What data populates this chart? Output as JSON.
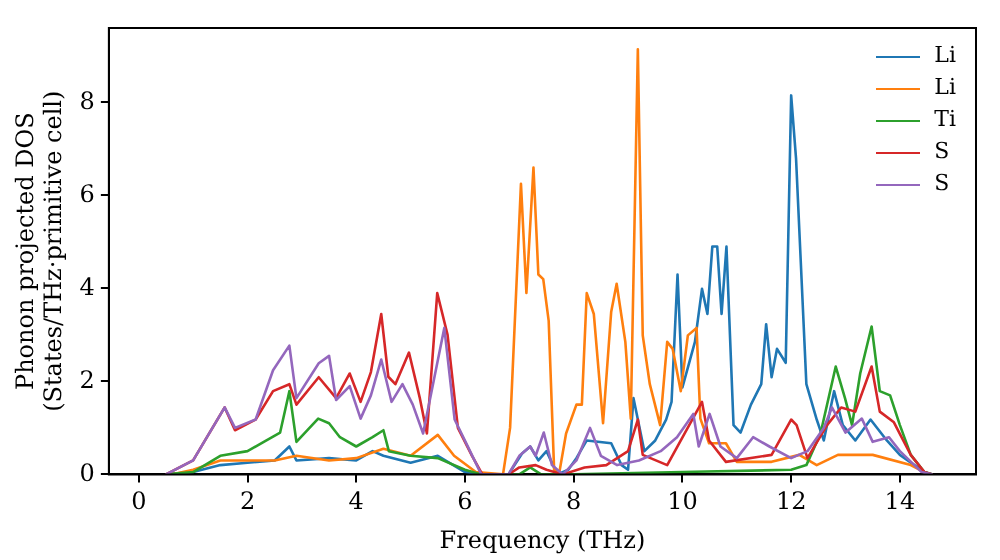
{
  "chart_data": {
    "type": "line",
    "xlabel": "Frequency (THz)",
    "ylabel": "Phonon projected DOS\n(States/THz·primitive cell)",
    "xlim": [
      -0.55,
      15.4
    ],
    "ylim": [
      0,
      9.6
    ],
    "xticks": [
      0,
      2,
      4,
      6,
      8,
      10,
      12,
      14
    ],
    "yticks": [
      0,
      2,
      4,
      6,
      8
    ],
    "grid": false,
    "legend": "top right",
    "marker": "none",
    "line_style": "solid",
    "series": [
      {
        "name": "Li",
        "color": "#1f77b4",
        "x": [
          0.5,
          1.0,
          1.5,
          2.0,
          2.5,
          2.77,
          2.9,
          3.5,
          4.0,
          4.3,
          4.5,
          5.0,
          5.5,
          6.0,
          6.3,
          6.8,
          7.05,
          7.2,
          7.35,
          7.5,
          7.7,
          7.9,
          8.05,
          8.24,
          8.69,
          8.88,
          9.0,
          9.1,
          9.3,
          9.5,
          9.7,
          9.8,
          9.91,
          10.0,
          10.23,
          10.36,
          10.46,
          10.55,
          10.64,
          10.72,
          10.81,
          10.94,
          11.07,
          11.26,
          11.45,
          11.54,
          11.64,
          11.74,
          11.9,
          12.0,
          12.09,
          12.28,
          12.47,
          12.6,
          12.79,
          12.95,
          13.18,
          13.46,
          13.76,
          14.0,
          14.45,
          14.6
        ],
        "values": [
          0,
          0.05,
          0.2,
          0.25,
          0.3,
          0.6,
          0.3,
          0.35,
          0.3,
          0.5,
          0.4,
          0.25,
          0.4,
          0.05,
          0,
          0,
          0.45,
          0.6,
          0.3,
          0.5,
          0,
          0.1,
          0.35,
          0.73,
          0.67,
          0.2,
          0.1,
          1.64,
          0.5,
          0.73,
          1.18,
          1.56,
          4.3,
          1.87,
          2.85,
          3.99,
          3.45,
          4.9,
          4.9,
          3.45,
          4.9,
          1.06,
          0.9,
          1.5,
          1.94,
          3.23,
          2.09,
          2.7,
          2.4,
          8.15,
          6.79,
          1.94,
          1.18,
          0.73,
          1.79,
          1.06,
          0.73,
          1.18,
          0.73,
          0.42,
          0.05,
          0
        ]
      },
      {
        "name": "Li",
        "color": "#ff7f0e",
        "x": [
          0.6,
          1.0,
          1.5,
          2.0,
          2.5,
          2.9,
          3.5,
          4.0,
          4.5,
          5.0,
          5.5,
          5.8,
          6.2,
          6.7,
          6.83,
          7.03,
          7.13,
          7.26,
          7.35,
          7.44,
          7.54,
          7.64,
          7.73,
          7.86,
          8.05,
          8.15,
          8.24,
          8.37,
          8.54,
          8.69,
          8.79,
          8.95,
          9.05,
          9.18,
          9.27,
          9.4,
          9.59,
          9.72,
          9.82,
          9.97,
          10.1,
          10.26,
          10.33,
          10.49,
          10.8,
          11.0,
          11.64,
          12.15,
          12.47,
          12.86,
          13.5,
          14.2,
          14.53
        ],
        "values": [
          0,
          0.1,
          0.3,
          0.3,
          0.3,
          0.4,
          0.3,
          0.35,
          0.55,
          0.4,
          0.85,
          0.4,
          0.05,
          0,
          1.0,
          6.25,
          3.9,
          6.6,
          4.3,
          4.2,
          3.3,
          0.1,
          0,
          0.88,
          1.5,
          1.5,
          3.9,
          3.45,
          1.1,
          3.5,
          4.1,
          2.85,
          1.2,
          9.14,
          2.99,
          1.94,
          1.06,
          2.85,
          2.7,
          1.79,
          2.99,
          3.15,
          1.2,
          0.67,
          0.67,
          0.27,
          0.27,
          0.42,
          0.2,
          0.42,
          0.42,
          0.2,
          0
        ]
      },
      {
        "name": "Ti",
        "color": "#2ca02c",
        "x": [
          0.5,
          1.0,
          1.5,
          2.0,
          2.3,
          2.6,
          2.77,
          2.9,
          3.3,
          3.5,
          3.7,
          4.0,
          4.3,
          4.5,
          4.6,
          5.0,
          5.5,
          6.0,
          6.3,
          7.0,
          7.2,
          7.4,
          8.0,
          10.0,
          12.0,
          12.28,
          12.54,
          12.82,
          12.99,
          13.12,
          13.27,
          13.48,
          13.63,
          13.82,
          14.0,
          14.2,
          14.45,
          14.6
        ],
        "values": [
          0,
          0.05,
          0.4,
          0.5,
          0.7,
          0.9,
          1.79,
          0.7,
          1.2,
          1.1,
          0.8,
          0.6,
          0.8,
          0.95,
          0.5,
          0.4,
          0.35,
          0.1,
          0,
          0,
          0.15,
          0,
          0,
          0.05,
          0.1,
          0.2,
          0.88,
          2.32,
          1.64,
          1.06,
          2.17,
          3.18,
          1.79,
          1.7,
          1.06,
          0.42,
          0.05,
          0
        ]
      },
      {
        "name": "S",
        "color": "#d62728",
        "x": [
          0.5,
          1.0,
          1.58,
          1.77,
          2.15,
          2.47,
          2.77,
          2.9,
          3.31,
          3.63,
          3.88,
          4.08,
          4.27,
          4.46,
          4.59,
          4.72,
          4.97,
          5.17,
          5.3,
          5.49,
          5.68,
          5.87,
          6.13,
          6.32,
          6.8,
          7.0,
          7.3,
          7.5,
          7.8,
          8.2,
          8.6,
          9.0,
          9.18,
          9.27,
          9.72,
          10.36,
          10.49,
          10.8,
          11.64,
          12.0,
          12.1,
          12.3,
          12.66,
          12.92,
          13.18,
          13.48,
          13.63,
          13.89,
          14.2,
          14.45,
          14.6
        ],
        "values": [
          0,
          0.3,
          1.44,
          0.95,
          1.18,
          1.79,
          1.94,
          1.5,
          2.09,
          1.64,
          2.17,
          1.56,
          2.2,
          3.45,
          2.1,
          1.94,
          2.62,
          1.64,
          0.88,
          3.9,
          3.0,
          1.0,
          0.4,
          0,
          0,
          0.15,
          0.2,
          0.1,
          0,
          0.15,
          0.2,
          0.5,
          1.18,
          0.42,
          0.2,
          1.56,
          0.73,
          0.27,
          0.42,
          1.18,
          1.06,
          0.35,
          1.06,
          1.44,
          1.35,
          2.32,
          1.35,
          1.12,
          0.42,
          0.05,
          0
        ]
      },
      {
        "name": "S",
        "color": "#9467bd",
        "x": [
          0.5,
          1.0,
          1.58,
          1.77,
          2.15,
          2.47,
          2.77,
          2.9,
          3.31,
          3.5,
          3.63,
          3.88,
          4.08,
          4.27,
          4.46,
          4.65,
          4.85,
          5.04,
          5.23,
          5.62,
          5.81,
          6.06,
          6.3,
          6.8,
          7.0,
          7.2,
          7.3,
          7.45,
          7.6,
          7.8,
          8.05,
          8.3,
          8.5,
          8.8,
          9.2,
          9.6,
          9.9,
          10.2,
          10.3,
          10.5,
          10.7,
          11.0,
          11.3,
          11.6,
          12.0,
          12.3,
          12.6,
          12.75,
          13.0,
          13.3,
          13.5,
          13.8,
          14.0,
          14.4,
          14.6
        ],
        "values": [
          0,
          0.3,
          1.44,
          1.0,
          1.18,
          2.24,
          2.77,
          1.64,
          2.39,
          2.55,
          1.6,
          1.9,
          1.2,
          1.7,
          2.47,
          1.56,
          1.94,
          1.5,
          0.88,
          3.15,
          1.18,
          0.58,
          0,
          0,
          0.4,
          0.6,
          0.4,
          0.9,
          0.2,
          0,
          0.3,
          1.0,
          0.4,
          0.2,
          0.3,
          0.5,
          0.8,
          1.3,
          0.6,
          1.3,
          0.6,
          0.35,
          0.8,
          0.6,
          0.35,
          0.5,
          1.0,
          1.44,
          0.9,
          1.2,
          0.7,
          0.8,
          0.5,
          0.05,
          0
        ]
      }
    ]
  }
}
